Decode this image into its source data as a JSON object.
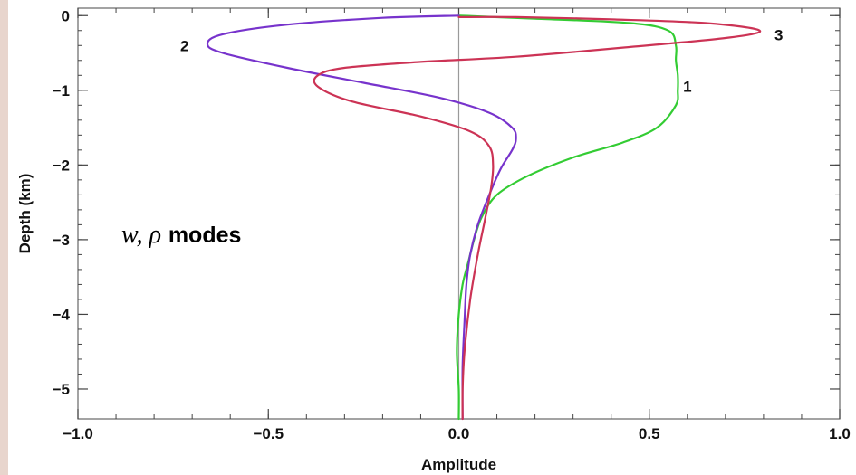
{
  "chart_data": {
    "type": "line",
    "title": "",
    "xlabel": "Amplitude",
    "ylabel": "Depth (km)",
    "xlim": [
      -1.0,
      1.0
    ],
    "ylim": [
      -5.4,
      0.1
    ],
    "xticks": [
      -1.0,
      -0.5,
      0.0,
      0.5,
      1.0
    ],
    "xtick_labels": [
      "−1.0",
      "−0.5",
      "0.0",
      "0.5",
      "1.0"
    ],
    "yticks": [
      0,
      -1,
      -2,
      -3,
      -4,
      -5
    ],
    "ytick_labels": [
      "0",
      "−1",
      "−2",
      "−3",
      "−4",
      "−5"
    ],
    "grid": false,
    "annotation": {
      "symbol": "w, ρ",
      "text": "modes"
    },
    "series": [
      {
        "name": "1",
        "color": "#33cc33",
        "points": [
          [
            0.0,
            0.0
          ],
          [
            0.05,
            -0.01
          ],
          [
            0.2,
            -0.04
          ],
          [
            0.45,
            -0.1
          ],
          [
            0.55,
            -0.2
          ],
          [
            0.57,
            -0.4
          ],
          [
            0.57,
            -0.6
          ],
          [
            0.575,
            -0.8
          ],
          [
            0.575,
            -1.0
          ],
          [
            0.57,
            -1.2
          ],
          [
            0.52,
            -1.5
          ],
          [
            0.43,
            -1.7
          ],
          [
            0.3,
            -1.9
          ],
          [
            0.18,
            -2.15
          ],
          [
            0.1,
            -2.4
          ],
          [
            0.06,
            -2.7
          ],
          [
            0.04,
            -3.0
          ],
          [
            0.025,
            -3.3
          ],
          [
            0.01,
            -3.6
          ],
          [
            0.0,
            -4.0
          ],
          [
            -0.005,
            -4.5
          ],
          [
            0.0,
            -5.0
          ],
          [
            0.0,
            -5.4
          ]
        ]
      },
      {
        "name": "2",
        "color": "#7733cc",
        "points": [
          [
            0.0,
            0.0
          ],
          [
            -0.2,
            -0.03
          ],
          [
            -0.45,
            -0.12
          ],
          [
            -0.62,
            -0.25
          ],
          [
            -0.66,
            -0.38
          ],
          [
            -0.62,
            -0.5
          ],
          [
            -0.45,
            -0.7
          ],
          [
            -0.25,
            -0.9
          ],
          [
            -0.05,
            -1.1
          ],
          [
            0.08,
            -1.3
          ],
          [
            0.14,
            -1.5
          ],
          [
            0.15,
            -1.65
          ],
          [
            0.14,
            -1.8
          ],
          [
            0.11,
            -2.05
          ],
          [
            0.08,
            -2.4
          ],
          [
            0.05,
            -2.8
          ],
          [
            0.03,
            -3.2
          ],
          [
            0.02,
            -3.6
          ],
          [
            0.015,
            -4.1
          ],
          [
            0.01,
            -4.7
          ],
          [
            0.01,
            -5.4
          ]
        ]
      },
      {
        "name": "3",
        "color": "#cc3355",
        "points": [
          [
            0.0,
            -0.02
          ],
          [
            0.15,
            -0.02
          ],
          [
            0.4,
            -0.05
          ],
          [
            0.65,
            -0.1
          ],
          [
            0.79,
            -0.2
          ],
          [
            0.7,
            -0.3
          ],
          [
            0.45,
            -0.42
          ],
          [
            0.15,
            -0.55
          ],
          [
            -0.1,
            -0.62
          ],
          [
            -0.3,
            -0.7
          ],
          [
            -0.37,
            -0.8
          ],
          [
            -0.37,
            -0.95
          ],
          [
            -0.28,
            -1.15
          ],
          [
            -0.1,
            -1.35
          ],
          [
            0.03,
            -1.55
          ],
          [
            0.08,
            -1.75
          ],
          [
            0.09,
            -2.0
          ],
          [
            0.085,
            -2.3
          ],
          [
            0.07,
            -2.7
          ],
          [
            0.05,
            -3.2
          ],
          [
            0.03,
            -3.8
          ],
          [
            0.015,
            -4.5
          ],
          [
            0.01,
            -5.0
          ],
          [
            0.01,
            -5.4
          ]
        ]
      }
    ],
    "mode_labels": [
      {
        "text": "1",
        "x": 0.6,
        "y": -0.95
      },
      {
        "text": "2",
        "x": -0.72,
        "y": -0.4
      },
      {
        "text": "3",
        "x": 0.84,
        "y": -0.26
      }
    ]
  }
}
